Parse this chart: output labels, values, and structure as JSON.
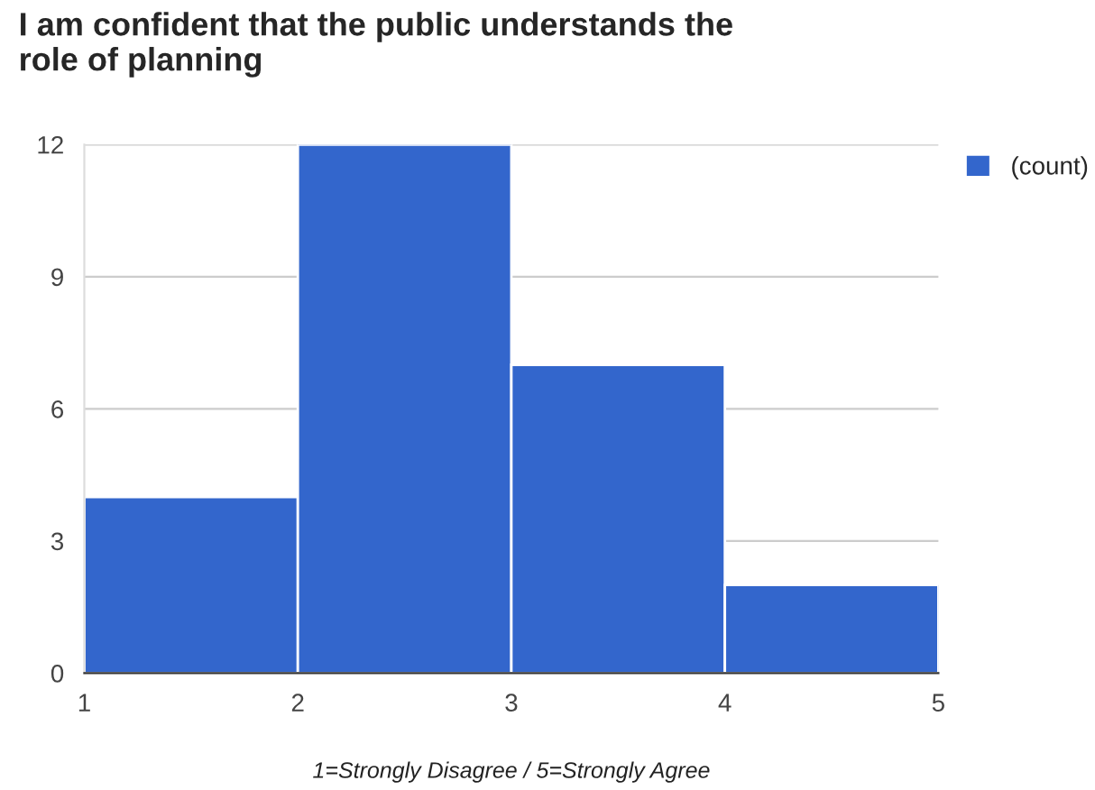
{
  "chart_data": {
    "type": "histogram",
    "title": "I am confident that the public understands the\nrole of planning",
    "xlabel": "1=Strongly Disagree / 5=Strongly Agree",
    "bins": [
      1,
      2,
      3,
      4,
      5
    ],
    "series": [
      {
        "name": "(count)",
        "color": "#3366cc",
        "values": [
          4,
          12,
          7,
          2
        ]
      }
    ],
    "xlim": [
      1,
      5
    ],
    "xticks": [
      1,
      2,
      3,
      4,
      5
    ],
    "ylim": [
      0,
      12
    ],
    "yticks": [
      0,
      3,
      6,
      9,
      12
    ],
    "grid": "y",
    "legend": "top right"
  }
}
